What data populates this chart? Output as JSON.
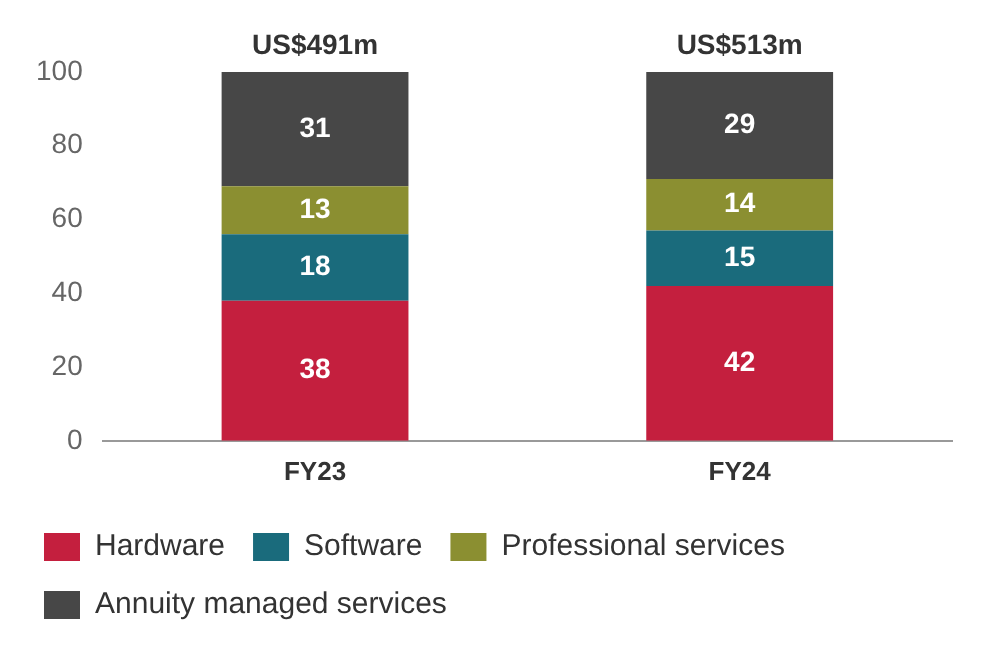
{
  "chart_data": {
    "type": "bar",
    "stacked": true,
    "categories": [
      "FY23",
      "FY24"
    ],
    "series": [
      {
        "name": "Hardware",
        "color": "#c41f3e",
        "values": [
          38,
          42
        ]
      },
      {
        "name": "Software",
        "color": "#1a6b7c",
        "values": [
          18,
          15
        ]
      },
      {
        "name": "Professional services",
        "color": "#8b8f31",
        "values": [
          13,
          14
        ]
      },
      {
        "name": "Annuity managed services",
        "color": "#474747",
        "values": [
          31,
          29
        ]
      }
    ],
    "totals": [
      "US$491m",
      "US$513m"
    ],
    "data_labels": true,
    "ylim": [
      0,
      100
    ],
    "yticks": [
      0,
      20,
      40,
      60,
      80,
      100
    ],
    "grid": false,
    "legend": "bottom"
  }
}
